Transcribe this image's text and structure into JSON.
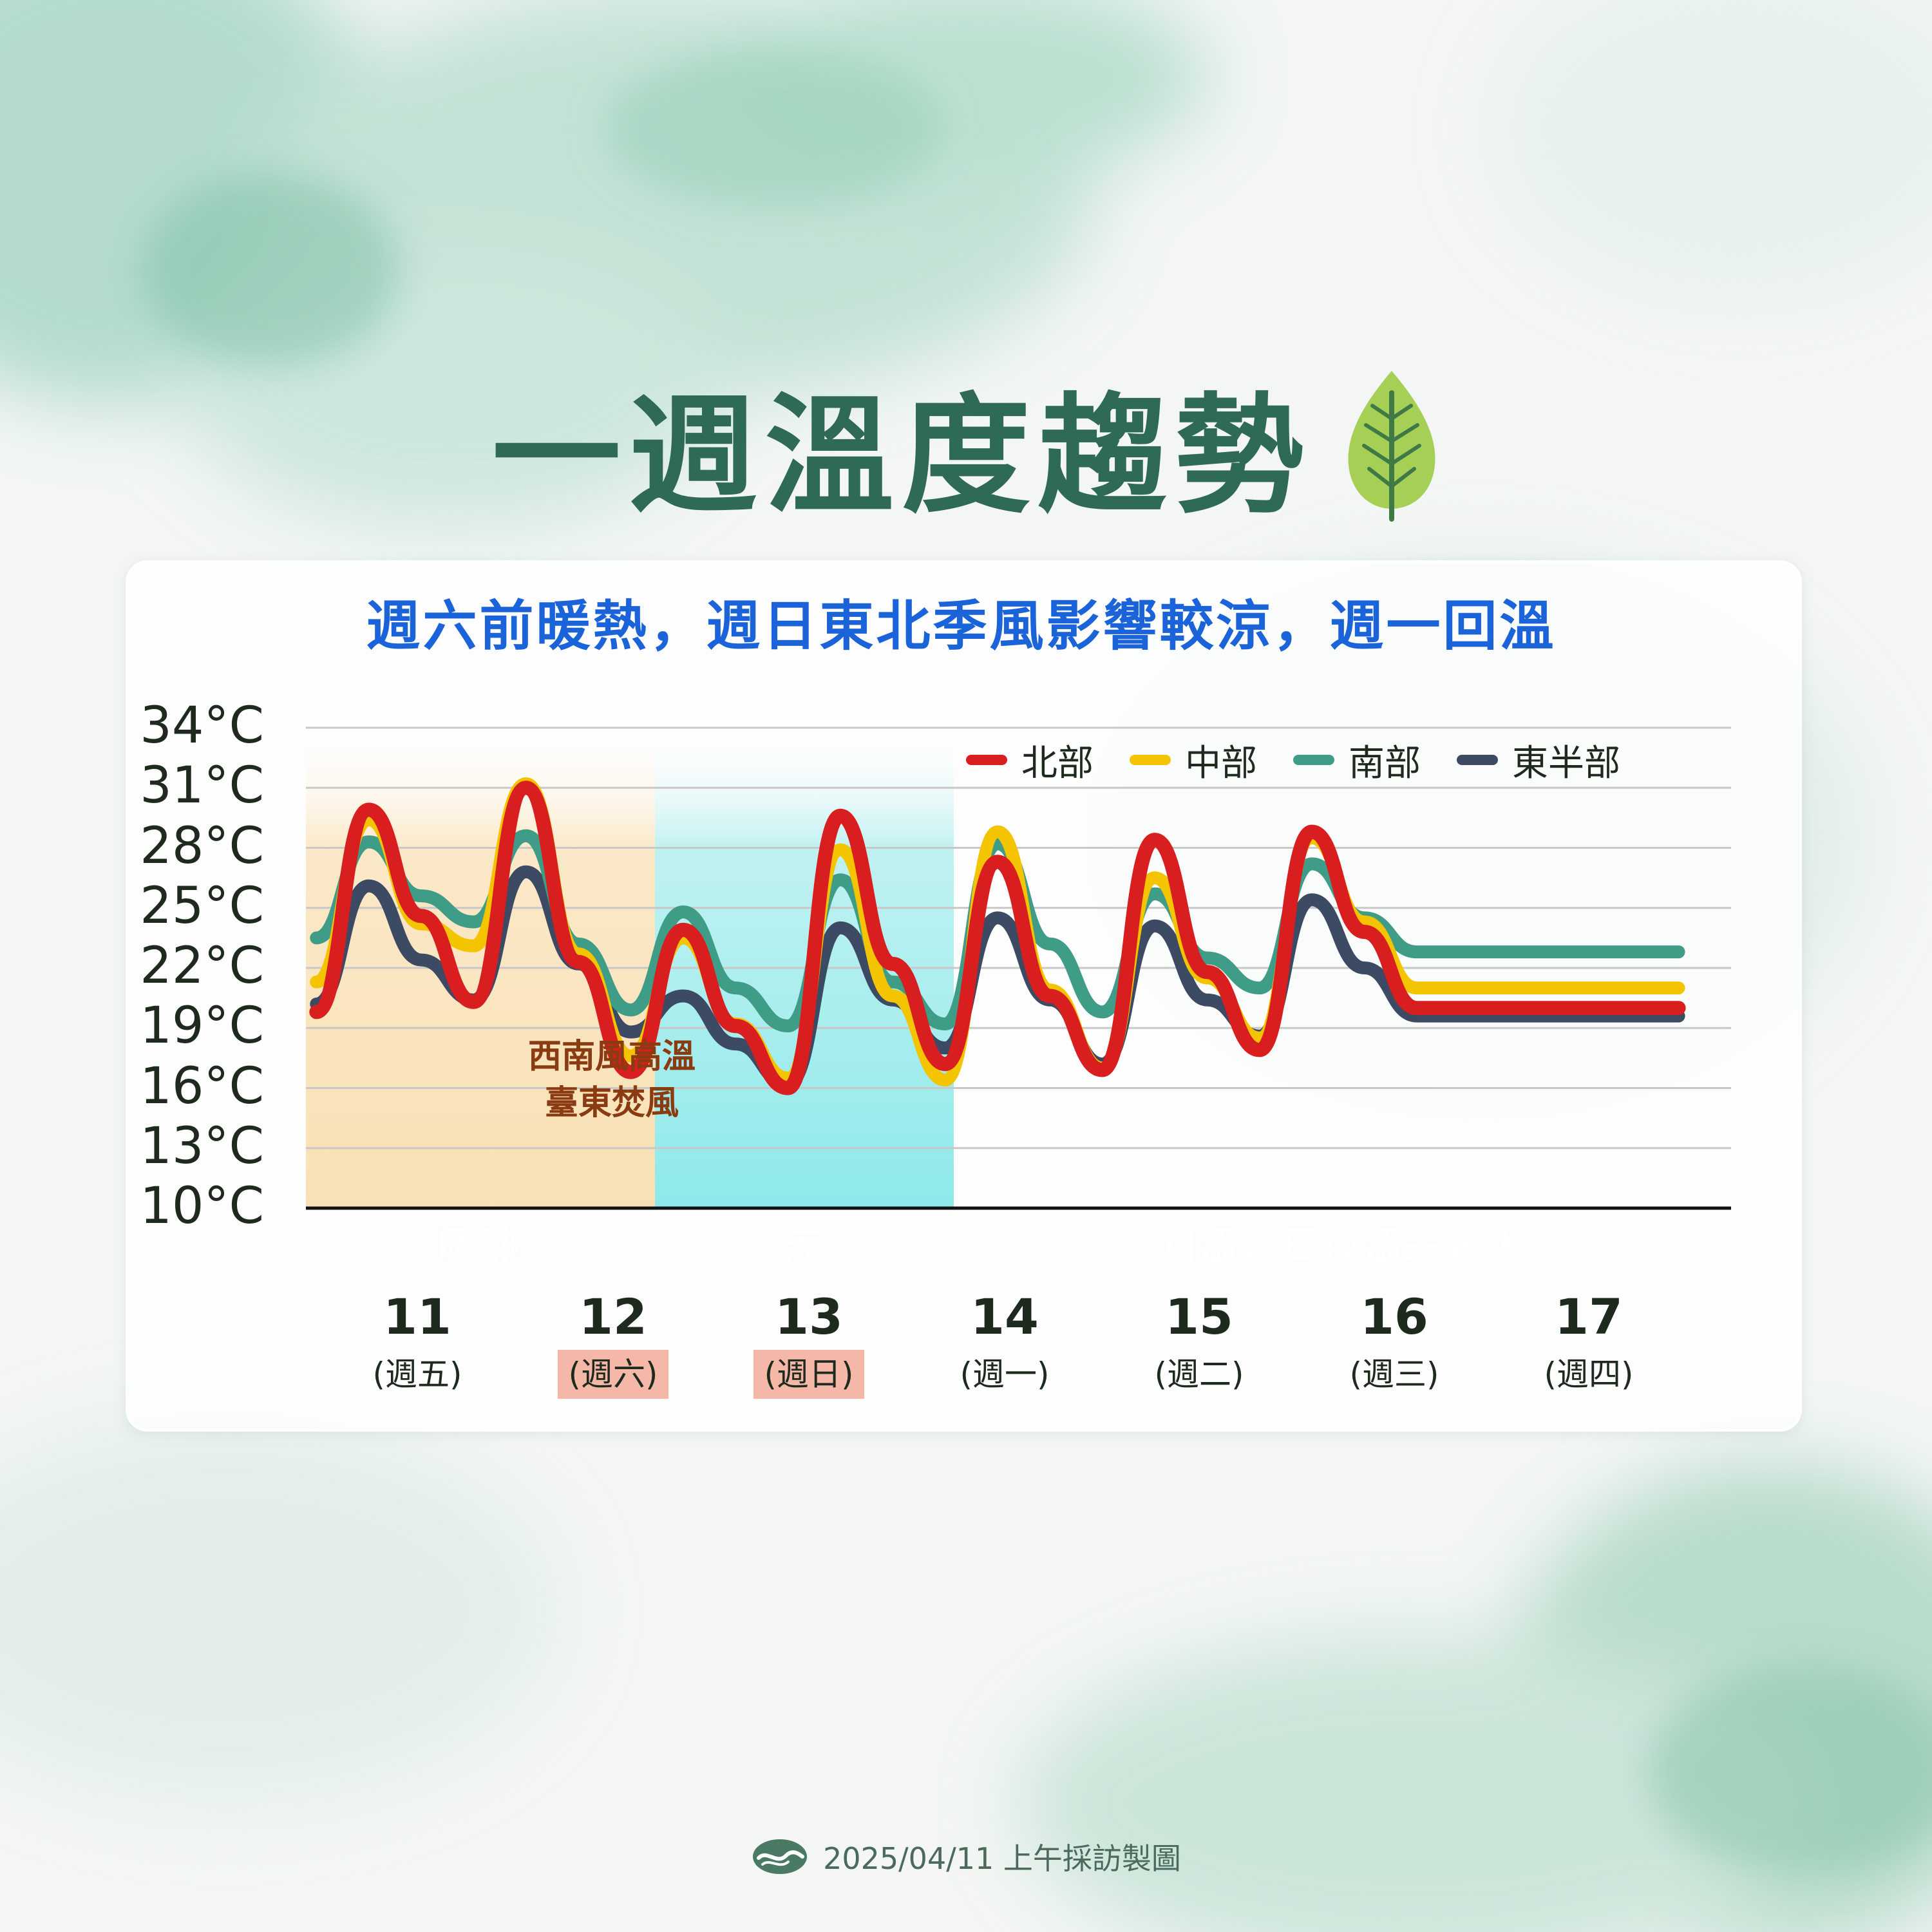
{
  "title": "一週溫度趨勢",
  "subtitle": "週六前暖熱，週日東北季風影響較涼，週一回溫",
  "annotation": [
    "西南風高溫",
    "臺東焚風"
  ],
  "bands": [
    {
      "label": "暖熱",
      "color": "#fbd467"
    },
    {
      "label": "涼",
      "color": "#8bc463"
    },
    {
      "label": "回溫，日夜溫差較大",
      "color": "#2f6b59"
    }
  ],
  "days": [
    {
      "date": "11",
      "weekday": "(週五)",
      "highlight": false
    },
    {
      "date": "12",
      "weekday": "(週六)",
      "highlight": true
    },
    {
      "date": "13",
      "weekday": "(週日)",
      "highlight": true
    },
    {
      "date": "14",
      "weekday": "(週一)",
      "highlight": false
    },
    {
      "date": "15",
      "weekday": "(週二)",
      "highlight": false
    },
    {
      "date": "16",
      "weekday": "(週三)",
      "highlight": false
    },
    {
      "date": "17",
      "weekday": "(週四)",
      "highlight": false
    }
  ],
  "footer": {
    "text": "2025/04/11 上午採訪製圖",
    "icon": "cwa-logo-icon"
  },
  "title_icon": "leaf-icon",
  "chart_data": {
    "type": "line",
    "ylim": [
      10,
      34
    ],
    "yticks": [
      "34°C",
      "31°C",
      "28°C",
      "25°C",
      "22°C",
      "19°C",
      "16°C",
      "13°C",
      "10°C"
    ],
    "ytick_values": [
      34,
      31,
      28,
      25,
      22,
      19,
      16,
      13,
      10
    ],
    "grid": true,
    "legend_position": "top-right",
    "x": [
      11.0,
      11.25,
      11.5,
      11.75,
      12.0,
      12.25,
      12.5,
      12.75,
      13.0,
      13.25,
      13.5,
      13.75,
      14.0,
      14.25,
      14.5,
      14.75,
      15.0,
      15.25,
      15.5,
      15.75,
      16.0,
      16.25,
      16.5,
      16.75,
      17.0,
      17.25,
      17.5
    ],
    "series": [
      {
        "name": "北部",
        "color": "#d81e1e",
        "values": [
          19.8,
          29.9,
          24.6,
          20.3,
          31.0,
          22.3,
          16.8,
          23.9,
          19.1,
          16.0,
          29.6,
          22.2,
          17.2,
          27.3,
          20.6,
          16.9,
          28.4,
          21.8,
          17.9,
          28.8,
          23.8,
          20.0,
          20.0,
          20.0,
          20.0,
          20.0,
          20.0
        ]
      },
      {
        "name": "中部",
        "color": "#f5c400",
        "values": [
          21.3,
          29.4,
          24.2,
          23.1,
          31.2,
          22.7,
          17.6,
          23.5,
          19.2,
          16.5,
          27.9,
          20.6,
          16.4,
          28.8,
          20.9,
          17.0,
          26.5,
          21.5,
          18.5,
          28.5,
          24.3,
          21.0,
          21.0,
          21.0,
          21.0,
          21.0,
          21.0
        ]
      },
      {
        "name": "南部",
        "color": "#3f9c86",
        "values": [
          23.5,
          28.3,
          25.6,
          24.3,
          28.6,
          23.2,
          19.9,
          24.8,
          21.0,
          19.1,
          26.4,
          21.3,
          19.2,
          28.2,
          23.2,
          19.8,
          25.7,
          22.5,
          21.0,
          27.2,
          24.5,
          22.8,
          22.8,
          22.8,
          22.8,
          22.8,
          22.8
        ]
      },
      {
        "name": "東半部",
        "color": "#3c4a63",
        "values": [
          20.2,
          26.1,
          22.4,
          20.4,
          26.8,
          22.2,
          18.8,
          20.6,
          18.2,
          16.2,
          24.0,
          20.4,
          18.0,
          24.5,
          20.4,
          17.2,
          24.1,
          20.4,
          18.6,
          25.4,
          22.0,
          19.6,
          19.6,
          19.6,
          19.6,
          19.6,
          19.6
        ]
      }
    ]
  }
}
